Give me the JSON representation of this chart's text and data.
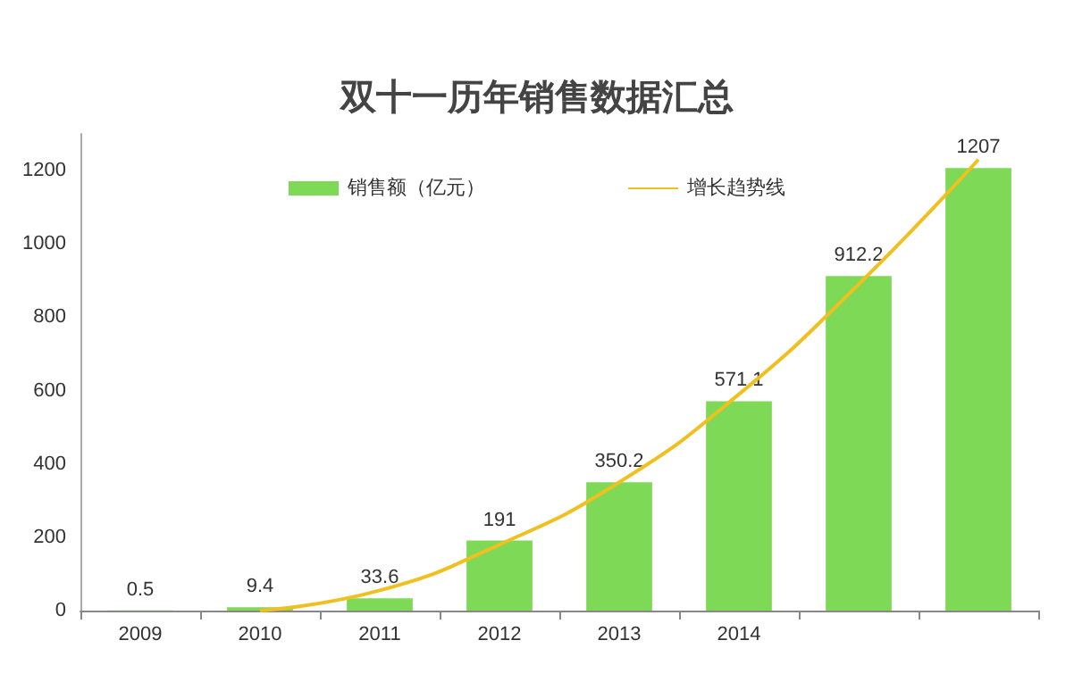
{
  "chart_data": {
    "type": "bar",
    "title": "双十一历年销售数据汇总",
    "categories": [
      "2009",
      "2010",
      "2011",
      "2012",
      "2013",
      "2014",
      null,
      null
    ],
    "series": [
      {
        "name": "销售额（亿元）",
        "color": "#7ed957",
        "values": [
          0.5,
          9.4,
          33.6,
          191,
          350.2,
          571.1,
          912.2,
          1207
        ],
        "data_labels": true
      },
      {
        "name": "增长趋势线",
        "type": "line",
        "color": "#f0c020",
        "values": [
          null,
          0,
          55,
          180,
          350,
          590,
          890,
          1230
        ],
        "marker": "none"
      }
    ],
    "ylim": [
      0,
      1300
    ],
    "yticks": [
      0,
      200,
      400,
      600,
      800,
      1000,
      1200
    ],
    "grid": false,
    "legend": "top"
  }
}
